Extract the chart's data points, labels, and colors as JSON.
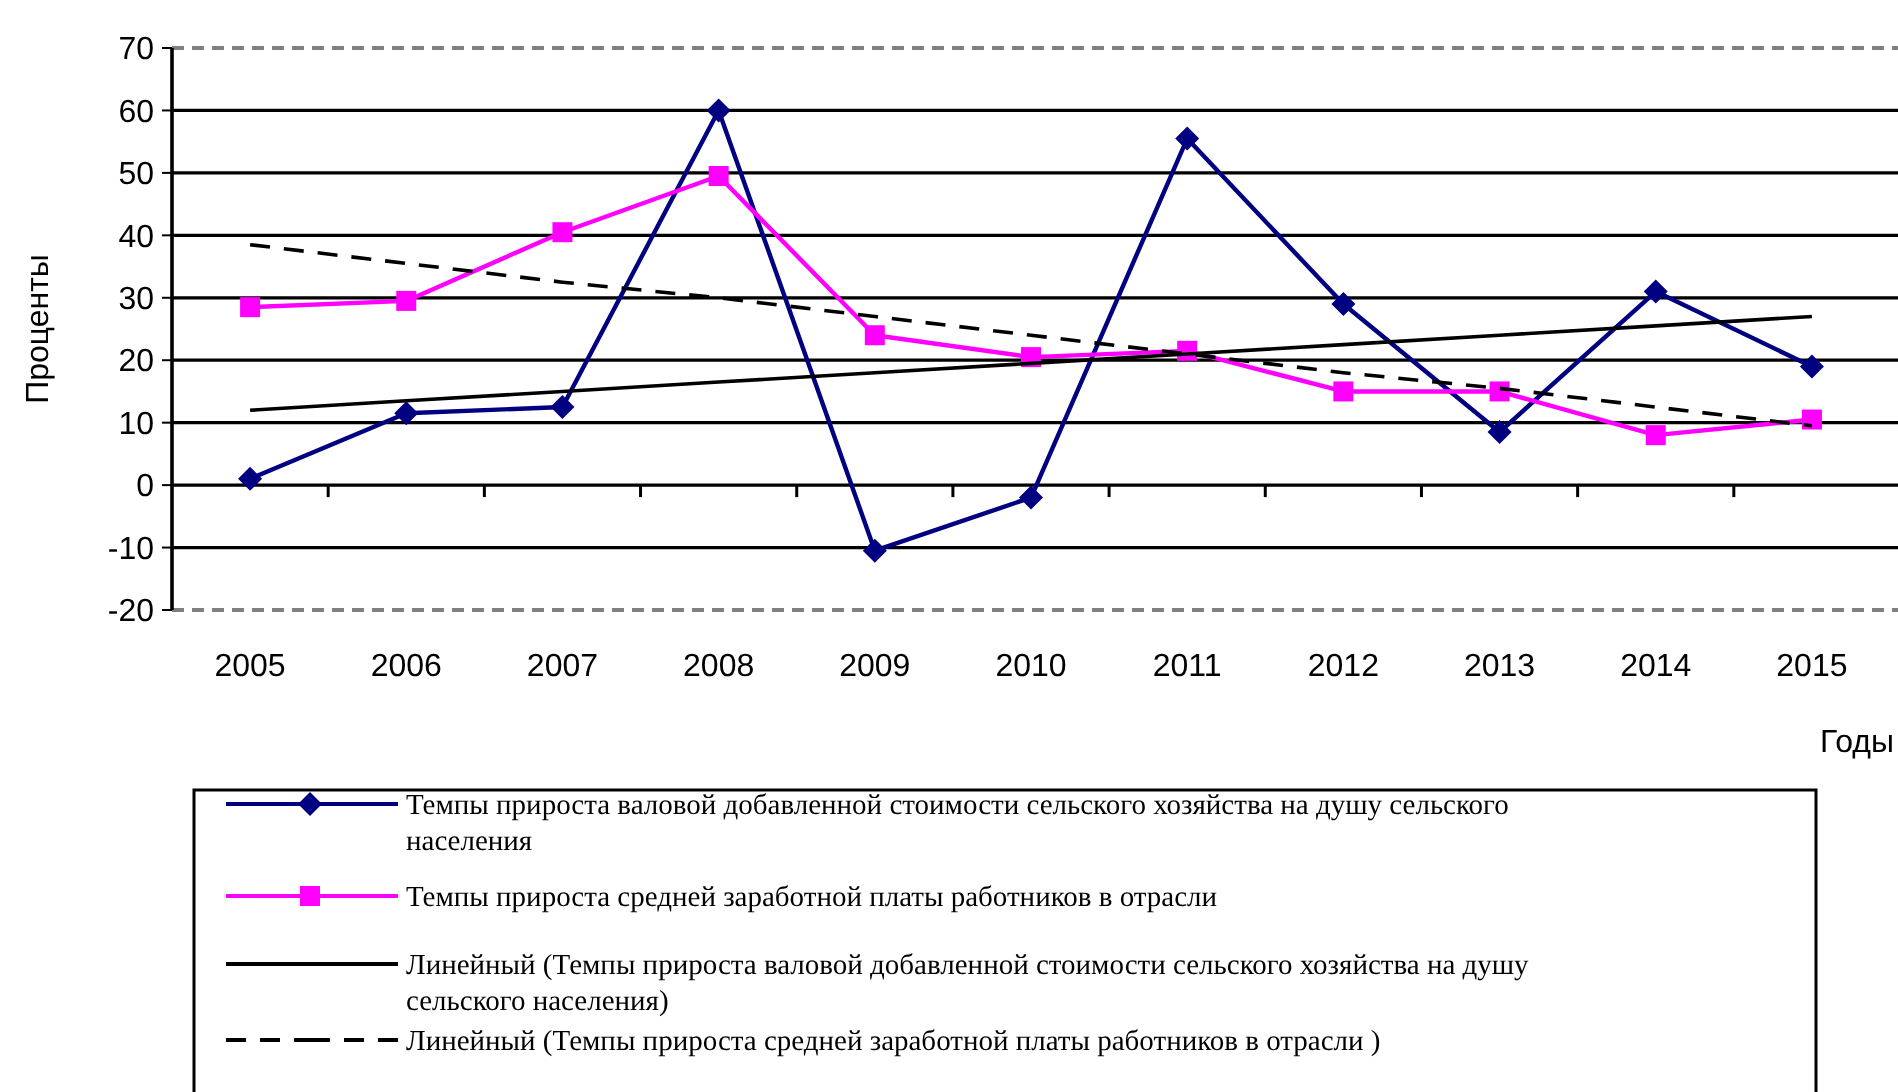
{
  "chart_data": {
    "type": "line",
    "xlabel": "Годы",
    "ylabel": "Проценты",
    "categories": [
      "2005",
      "2006",
      "2007",
      "2008",
      "2009",
      "2010",
      "2011",
      "2012",
      "2013",
      "2014",
      "2015"
    ],
    "series": [
      {
        "name": "Темпы прироста валовой добавленной стоимости сельского хозяйства на душу сельского населения",
        "color": "#000080",
        "marker": "diamond",
        "values": [
          1,
          11.5,
          12.5,
          60,
          -10.5,
          -2,
          55.5,
          29,
          8.5,
          31,
          19
        ]
      },
      {
        "name": "Темпы прироста средней заработной платы работников в отрасли",
        "color": "#ff00ff",
        "marker": "square",
        "values": [
          28.5,
          29.5,
          40.5,
          49.5,
          24,
          20.5,
          21.5,
          15,
          15,
          8,
          10.5
        ]
      },
      {
        "name": "Линейный (Темпы прироста валовой добавленной стоимости сельского хозяйства на душу сельского населения)",
        "color": "#000000",
        "marker": "none",
        "line_style": "solid",
        "values": [
          12,
          13.5,
          15,
          16.5,
          18,
          19.5,
          21,
          22.5,
          24,
          25.5,
          27
        ]
      },
      {
        "name": "Линейный (Темпы прироста средней заработной платы работников в отрасли )",
        "color": "#000000",
        "marker": "none",
        "line_style": "dashed",
        "values": [
          38.5,
          35.5,
          32.5,
          30,
          27,
          24,
          21,
          18,
          15.5,
          12.5,
          9.5
        ]
      }
    ],
    "ylim": [
      -20,
      70
    ],
    "yticks": [
      -20,
      -10,
      0,
      10,
      20,
      30,
      40,
      50,
      60,
      70
    ],
    "grid": "y",
    "legend": "bottom"
  }
}
